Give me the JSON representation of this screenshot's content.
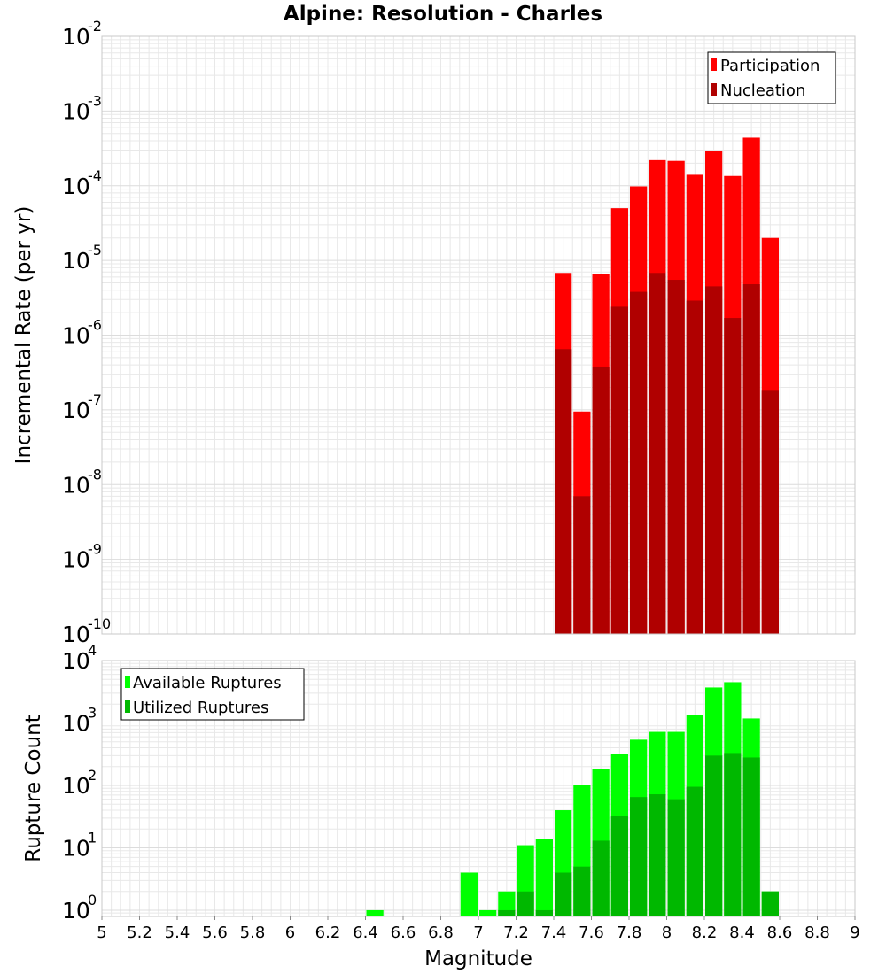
{
  "title": "Alpine: Resolution - Charles",
  "xlabel": "Magnitude",
  "colors": {
    "participation": "#ff0000",
    "nucleation": "#b00000",
    "available": "#00ff00",
    "utilized": "#00b800",
    "grid": "#e8e8e8",
    "frame": "#c8c8c8"
  },
  "chart_data": [
    {
      "type": "bar",
      "ylabel": "Incremental Rate (per yr)",
      "yscale": "log",
      "ylim_exp": [
        -10,
        -2
      ],
      "xlim": [
        5,
        9
      ],
      "grid": true,
      "legend_position": "top-right",
      "y_tick_base": "10",
      "y_tick_exponents": [
        "-10",
        "-9",
        "-8",
        "-7",
        "-6",
        "-5",
        "-4",
        "-3",
        "-2"
      ],
      "x": [
        7.45,
        7.55,
        7.65,
        7.75,
        7.85,
        7.95,
        8.05,
        8.15,
        8.25,
        8.35,
        8.45,
        8.55
      ],
      "series": [
        {
          "name": "Participation",
          "values": [
            6.8e-06,
            9.5e-08,
            6.5e-06,
            5e-05,
            9.8e-05,
            0.00022,
            0.000215,
            0.00014,
            0.00029,
            0.000135,
            0.00044,
            2e-05
          ]
        },
        {
          "name": "Nucleation",
          "values": [
            6.5e-07,
            7e-09,
            3.8e-07,
            2.4e-06,
            3.8e-06,
            6.8e-06,
            5.5e-06,
            2.9e-06,
            4.5e-06,
            1.7e-06,
            4.8e-06,
            1.8e-07
          ]
        }
      ]
    },
    {
      "type": "bar",
      "ylabel": "Rupture Count",
      "yscale": "log",
      "ylim_exp": [
        -0.1,
        4
      ],
      "xlim": [
        5,
        9
      ],
      "grid": true,
      "legend_position": "top-left",
      "y_tick_base": "10",
      "y_tick_exponents": [
        "0",
        "1",
        "2",
        "3",
        "4"
      ],
      "x_ticks": [
        "5",
        "5.2",
        "5.4",
        "5.6",
        "5.8",
        "6",
        "6.2",
        "6.4",
        "6.6",
        "6.8",
        "7",
        "7.2",
        "7.4",
        "7.6",
        "7.8",
        "8",
        "8.2",
        "8.4",
        "8.6",
        "8.8",
        "9"
      ],
      "x": [
        6.45,
        6.95,
        7.05,
        7.15,
        7.25,
        7.35,
        7.45,
        7.55,
        7.65,
        7.75,
        7.85,
        7.95,
        8.05,
        8.15,
        8.25,
        8.35,
        8.45,
        8.55
      ],
      "series": [
        {
          "name": "Available Ruptures",
          "values": [
            1,
            4,
            1,
            2,
            11,
            14,
            40,
            100,
            180,
            320,
            540,
            720,
            720,
            1350,
            3700,
            4500,
            1180,
            2
          ]
        },
        {
          "name": "Utilized Ruptures",
          "values": [
            0,
            0,
            0,
            1,
            2,
            1,
            4,
            5,
            13,
            32,
            65,
            72,
            60,
            95,
            300,
            330,
            280,
            2
          ]
        }
      ]
    }
  ]
}
